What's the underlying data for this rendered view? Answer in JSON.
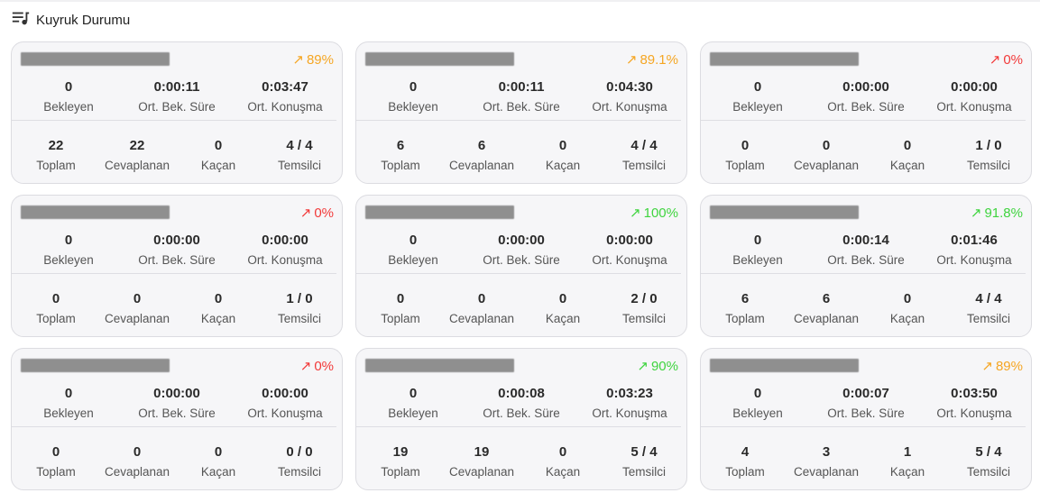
{
  "header": {
    "title": "Kuyruk Durumu",
    "icon": "queue-music-icon"
  },
  "labels": {
    "bekleyen": "Bekleyen",
    "ort_bek_sure": "Ort. Bek. Süre",
    "ort_konusma": "Ort. Konuşma",
    "toplam": "Toplam",
    "cevaplanan": "Cevaplanan",
    "kacan": "Kaçan",
    "temsilci": "Temsilci"
  },
  "colors": {
    "orange": "#f5a623",
    "red": "#f23a3a",
    "green": "#3fd43f"
  },
  "queues": [
    {
      "pct": "89%",
      "pct_color": "#f5a623",
      "bekleyen": "0",
      "ort_bek_sure": "0:00:11",
      "ort_konusma": "0:03:47",
      "toplam": "22",
      "cevaplanan": "22",
      "kacan": "0",
      "temsilci": "4 / 4"
    },
    {
      "pct": "89.1%",
      "pct_color": "#f5a623",
      "bekleyen": "0",
      "ort_bek_sure": "0:00:11",
      "ort_konusma": "0:04:30",
      "toplam": "6",
      "cevaplanan": "6",
      "kacan": "0",
      "temsilci": "4 / 4"
    },
    {
      "pct": "0%",
      "pct_color": "#f23a3a",
      "bekleyen": "0",
      "ort_bek_sure": "0:00:00",
      "ort_konusma": "0:00:00",
      "toplam": "0",
      "cevaplanan": "0",
      "kacan": "0",
      "temsilci": "1 / 0"
    },
    {
      "pct": "0%",
      "pct_color": "#f23a3a",
      "bekleyen": "0",
      "ort_bek_sure": "0:00:00",
      "ort_konusma": "0:00:00",
      "toplam": "0",
      "cevaplanan": "0",
      "kacan": "0",
      "temsilci": "1 / 0"
    },
    {
      "pct": "100%",
      "pct_color": "#3fd43f",
      "bekleyen": "0",
      "ort_bek_sure": "0:00:00",
      "ort_konusma": "0:00:00",
      "toplam": "0",
      "cevaplanan": "0",
      "kacan": "0",
      "temsilci": "2 / 0"
    },
    {
      "pct": "91.8%",
      "pct_color": "#3fd43f",
      "bekleyen": "0",
      "ort_bek_sure": "0:00:14",
      "ort_konusma": "0:01:46",
      "toplam": "6",
      "cevaplanan": "6",
      "kacan": "0",
      "temsilci": "4 / 4"
    },
    {
      "pct": "0%",
      "pct_color": "#f23a3a",
      "bekleyen": "0",
      "ort_bek_sure": "0:00:00",
      "ort_konusma": "0:00:00",
      "toplam": "0",
      "cevaplanan": "0",
      "kacan": "0",
      "temsilci": "0 / 0"
    },
    {
      "pct": "90%",
      "pct_color": "#3fd43f",
      "bekleyen": "0",
      "ort_bek_sure": "0:00:08",
      "ort_konusma": "0:03:23",
      "toplam": "19",
      "cevaplanan": "19",
      "kacan": "0",
      "temsilci": "5 / 4"
    },
    {
      "pct": "89%",
      "pct_color": "#f5a623",
      "bekleyen": "0",
      "ort_bek_sure": "0:00:07",
      "ort_konusma": "0:03:50",
      "toplam": "4",
      "cevaplanan": "3",
      "kacan": "1",
      "temsilci": "5 / 4"
    }
  ]
}
